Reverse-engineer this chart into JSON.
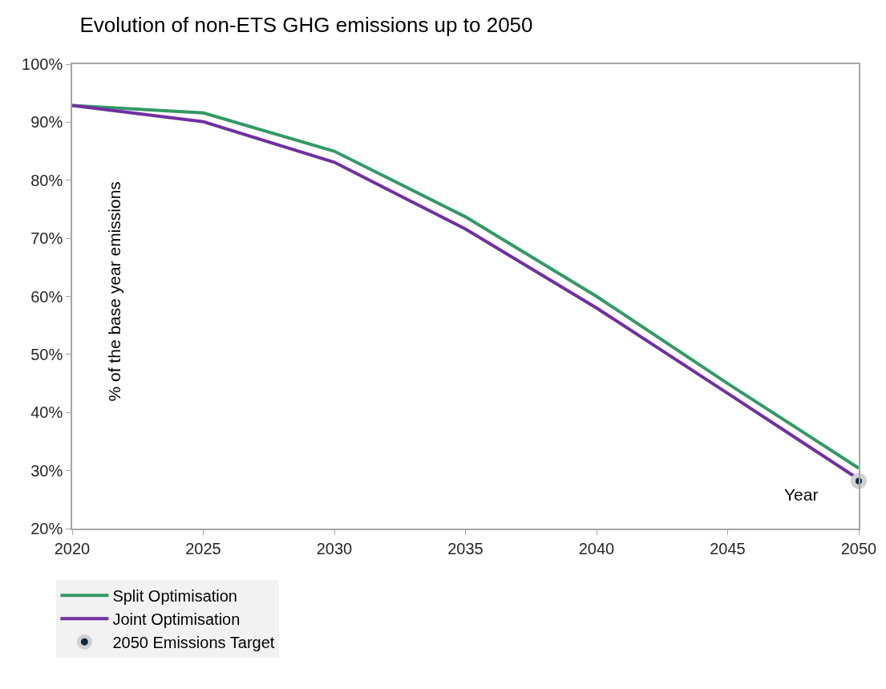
{
  "chart_data": {
    "type": "line",
    "title": "Evolution of non-ETS GHG emissions up to 2050",
    "xlabel": "Year",
    "ylabel": "% of the base year emissions",
    "x": [
      2020,
      2025,
      2030,
      2035,
      2040,
      2045,
      2050
    ],
    "series": [
      {
        "name": "Split Optimisation",
        "color": "#339966",
        "values": [
          92.9,
          91.6,
          85.0,
          73.7,
          60.0,
          45.0,
          30.4
        ]
      },
      {
        "name": "Joint Optimisation",
        "color": "#7030a0",
        "values": [
          92.9,
          90.1,
          83.1,
          71.6,
          58.0,
          43.3,
          28.5
        ]
      },
      {
        "name": "2050 Emissions Target",
        "type": "scatter",
        "marker": "circle",
        "color": "#0e2841",
        "x": [
          2050
        ],
        "values": [
          28.2
        ]
      }
    ],
    "xlim": [
      2020,
      2050
    ],
    "xticks": [
      2020,
      2025,
      2030,
      2035,
      2040,
      2045,
      2050
    ],
    "ylim": [
      20,
      100
    ],
    "yticks": [
      {
        "value": 20,
        "label": "20%"
      },
      {
        "value": 30,
        "label": "30%"
      },
      {
        "value": 40,
        "label": "40%"
      },
      {
        "value": 50,
        "label": "50%"
      },
      {
        "value": 60,
        "label": "60%"
      },
      {
        "value": 70,
        "label": "70%"
      },
      {
        "value": 80,
        "label": "80%"
      },
      {
        "value": 90,
        "label": "90%"
      },
      {
        "value": 100,
        "label": "100%"
      }
    ],
    "legend": "bottom left",
    "line_style": "solid"
  }
}
